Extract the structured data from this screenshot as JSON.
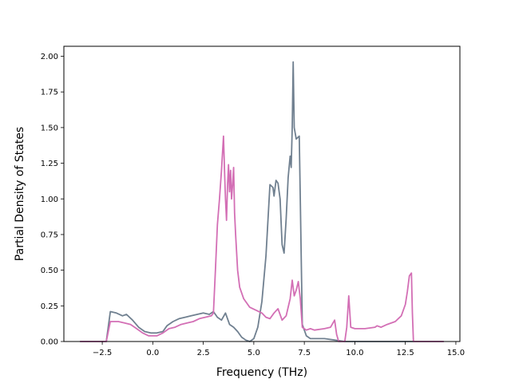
{
  "chart_data": {
    "type": "line",
    "title": "",
    "xlabel": "Frequency (THz)",
    "ylabel": "Partial Density of States",
    "xlim": [
      -4.4,
      15.2
    ],
    "ylim": [
      0.0,
      2.07
    ],
    "grid": false,
    "x_ticks": [
      -2.5,
      0.0,
      2.5,
      5.0,
      7.5,
      10.0,
      12.5,
      15.0
    ],
    "x_tick_labels": [
      "−2.5",
      "0.0",
      "2.5",
      "5.0",
      "7.5",
      "10.0",
      "12.5",
      "15.0"
    ],
    "y_ticks": [
      0.0,
      0.25,
      0.5,
      0.75,
      1.0,
      1.25,
      1.5,
      1.75,
      2.0
    ],
    "y_tick_labels": [
      "0.00",
      "0.25",
      "0.50",
      "0.75",
      "1.00",
      "1.25",
      "1.50",
      "1.75",
      "2.00"
    ],
    "series": [
      {
        "color": "#708090",
        "points": [
          [
            -3.6,
            0.0
          ],
          [
            -2.3,
            0.0
          ],
          [
            -2.1,
            0.21
          ],
          [
            -1.8,
            0.2
          ],
          [
            -1.5,
            0.18
          ],
          [
            -1.3,
            0.19
          ],
          [
            -1.0,
            0.15
          ],
          [
            -0.7,
            0.1
          ],
          [
            -0.4,
            0.07
          ],
          [
            -0.1,
            0.06
          ],
          [
            0.2,
            0.06
          ],
          [
            0.5,
            0.07
          ],
          [
            0.7,
            0.11
          ],
          [
            1.0,
            0.14
          ],
          [
            1.3,
            0.16
          ],
          [
            1.6,
            0.17
          ],
          [
            1.9,
            0.18
          ],
          [
            2.2,
            0.19
          ],
          [
            2.5,
            0.2
          ],
          [
            2.8,
            0.19
          ],
          [
            3.0,
            0.21
          ],
          [
            3.2,
            0.17
          ],
          [
            3.4,
            0.15
          ],
          [
            3.6,
            0.2
          ],
          [
            3.8,
            0.12
          ],
          [
            4.0,
            0.1
          ],
          [
            4.2,
            0.07
          ],
          [
            4.4,
            0.03
          ],
          [
            4.6,
            0.01
          ],
          [
            4.8,
            0.0
          ],
          [
            5.0,
            0.02
          ],
          [
            5.2,
            0.1
          ],
          [
            5.4,
            0.28
          ],
          [
            5.6,
            0.6
          ],
          [
            5.8,
            1.1
          ],
          [
            5.95,
            1.08
          ],
          [
            6.0,
            1.02
          ],
          [
            6.1,
            1.13
          ],
          [
            6.2,
            1.11
          ],
          [
            6.3,
            1.0
          ],
          [
            6.4,
            0.68
          ],
          [
            6.5,
            0.62
          ],
          [
            6.6,
            0.86
          ],
          [
            6.7,
            1.15
          ],
          [
            6.8,
            1.3
          ],
          [
            6.85,
            1.22
          ],
          [
            6.9,
            1.5
          ],
          [
            6.95,
            1.96
          ],
          [
            7.0,
            1.5
          ],
          [
            7.1,
            1.42
          ],
          [
            7.25,
            1.44
          ],
          [
            7.3,
            1.0
          ],
          [
            7.4,
            0.12
          ],
          [
            7.6,
            0.04
          ],
          [
            7.8,
            0.02
          ],
          [
            8.5,
            0.02
          ],
          [
            9.0,
            0.01
          ],
          [
            9.5,
            0.0
          ],
          [
            12.7,
            0.0
          ],
          [
            14.4,
            0.0
          ]
        ]
      },
      {
        "color": "#D36FB5",
        "points": [
          [
            -3.6,
            0.0
          ],
          [
            -2.3,
            0.0
          ],
          [
            -2.1,
            0.14
          ],
          [
            -1.7,
            0.14
          ],
          [
            -1.4,
            0.13
          ],
          [
            -1.1,
            0.12
          ],
          [
            -0.8,
            0.09
          ],
          [
            -0.5,
            0.06
          ],
          [
            -0.2,
            0.04
          ],
          [
            0.2,
            0.04
          ],
          [
            0.5,
            0.06
          ],
          [
            0.8,
            0.09
          ],
          [
            1.1,
            0.1
          ],
          [
            1.4,
            0.12
          ],
          [
            1.7,
            0.13
          ],
          [
            2.0,
            0.14
          ],
          [
            2.3,
            0.16
          ],
          [
            2.6,
            0.17
          ],
          [
            2.9,
            0.18
          ],
          [
            3.0,
            0.2
          ],
          [
            3.1,
            0.5
          ],
          [
            3.2,
            0.82
          ],
          [
            3.3,
            1.0
          ],
          [
            3.4,
            1.2
          ],
          [
            3.5,
            1.44
          ],
          [
            3.55,
            1.2
          ],
          [
            3.6,
            1.0
          ],
          [
            3.65,
            0.85
          ],
          [
            3.7,
            1.1
          ],
          [
            3.75,
            1.24
          ],
          [
            3.8,
            1.05
          ],
          [
            3.85,
            1.2
          ],
          [
            3.9,
            1.0
          ],
          [
            3.95,
            1.1
          ],
          [
            4.0,
            1.22
          ],
          [
            4.05,
            0.9
          ],
          [
            4.1,
            0.75
          ],
          [
            4.2,
            0.5
          ],
          [
            4.3,
            0.38
          ],
          [
            4.5,
            0.3
          ],
          [
            4.8,
            0.24
          ],
          [
            5.1,
            0.22
          ],
          [
            5.4,
            0.2
          ],
          [
            5.6,
            0.17
          ],
          [
            5.8,
            0.16
          ],
          [
            6.0,
            0.2
          ],
          [
            6.2,
            0.23
          ],
          [
            6.4,
            0.15
          ],
          [
            6.6,
            0.18
          ],
          [
            6.8,
            0.3
          ],
          [
            6.9,
            0.43
          ],
          [
            7.0,
            0.32
          ],
          [
            7.1,
            0.36
          ],
          [
            7.2,
            0.42
          ],
          [
            7.3,
            0.3
          ],
          [
            7.4,
            0.1
          ],
          [
            7.6,
            0.08
          ],
          [
            7.8,
            0.09
          ],
          [
            8.0,
            0.08
          ],
          [
            8.5,
            0.09
          ],
          [
            8.8,
            0.1
          ],
          [
            9.0,
            0.15
          ],
          [
            9.1,
            0.05
          ],
          [
            9.2,
            0.0
          ],
          [
            9.5,
            0.0
          ],
          [
            9.6,
            0.1
          ],
          [
            9.7,
            0.32
          ],
          [
            9.8,
            0.1
          ],
          [
            10.0,
            0.09
          ],
          [
            10.5,
            0.09
          ],
          [
            11.0,
            0.1
          ],
          [
            11.1,
            0.11
          ],
          [
            11.3,
            0.1
          ],
          [
            11.6,
            0.12
          ],
          [
            12.0,
            0.14
          ],
          [
            12.3,
            0.18
          ],
          [
            12.5,
            0.26
          ],
          [
            12.6,
            0.35
          ],
          [
            12.7,
            0.46
          ],
          [
            12.8,
            0.48
          ],
          [
            12.85,
            0.2
          ],
          [
            12.9,
            0.0
          ],
          [
            14.4,
            0.0
          ]
        ]
      }
    ]
  }
}
